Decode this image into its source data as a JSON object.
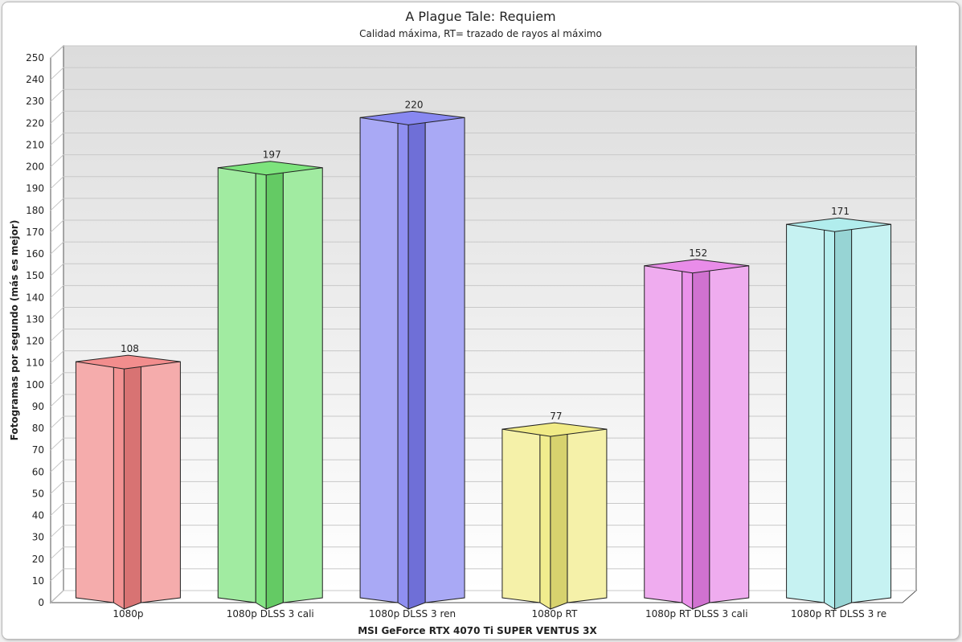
{
  "chart_data": {
    "type": "bar",
    "title": "A Plague Tale: Requiem",
    "subtitle": "Calidad máxima, RT= trazado de rayos al máximo",
    "xlabel": "MSI GeForce RTX 4070 Ti SUPER VENTUS 3X",
    "ylabel": "Fotogramas por segundo (más es mejor)",
    "ylim": [
      0,
      250
    ],
    "ytick_step": 10,
    "grid": true,
    "categories": [
      "1080p",
      "1080p DLSS 3 cali",
      "1080p DLSS 3 ren",
      "1080p RT",
      "1080p RT DLSS 3 cali",
      "1080p RT DLSS 3 re"
    ],
    "values": [
      108,
      197,
      220,
      77,
      152,
      171
    ],
    "colors": [
      "#f08080",
      "#6fe06f",
      "#7b7bef",
      "#efe97a",
      "#e77fe7",
      "#a8ebeb"
    ]
  }
}
